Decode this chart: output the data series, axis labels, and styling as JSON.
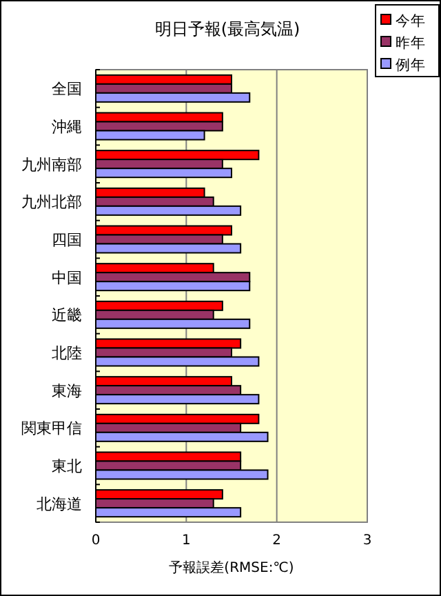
{
  "chart_data": {
    "type": "bar",
    "orientation": "horizontal",
    "title": "明日予報(最高気温)",
    "xlabel": "予報誤差(RMSE:℃)",
    "categories": [
      "全国",
      "沖縄",
      "九州南部",
      "九州北部",
      "四国",
      "中国",
      "近畿",
      "北陸",
      "東海",
      "関東甲信",
      "東北",
      "北海道"
    ],
    "series": [
      {
        "name": "今年",
        "color": "#ff0000",
        "values": [
          1.5,
          1.4,
          1.8,
          1.2,
          1.5,
          1.3,
          1.4,
          1.6,
          1.5,
          1.8,
          1.6,
          1.4
        ]
      },
      {
        "name": "昨年",
        "color": "#993366",
        "values": [
          1.5,
          1.4,
          1.4,
          1.3,
          1.4,
          1.7,
          1.3,
          1.5,
          1.6,
          1.6,
          1.6,
          1.3
        ]
      },
      {
        "name": "例年",
        "color": "#9999ff",
        "values": [
          1.7,
          1.2,
          1.5,
          1.6,
          1.6,
          1.7,
          1.7,
          1.8,
          1.8,
          1.9,
          1.9,
          1.6
        ]
      }
    ],
    "xlim": [
      0,
      3
    ],
    "xticks": [
      0,
      1,
      2,
      3
    ],
    "grid": "x",
    "legend": "top right"
  }
}
